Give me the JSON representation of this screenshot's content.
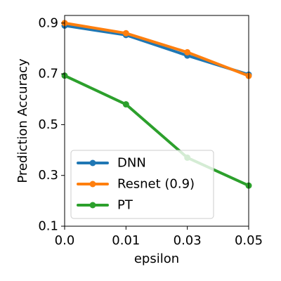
{
  "chart_data": {
    "type": "line",
    "xlabel": "epsilon",
    "ylabel": "Prediction Accuracy",
    "xticks": [
      "0.0",
      "0.01",
      "0.03",
      "0.05"
    ],
    "yticks": [
      "0.1",
      "0.3",
      "0.5",
      "0.7",
      "0.9"
    ],
    "ylim": [
      0.1,
      0.93
    ],
    "grid": false,
    "legend_position": "lower-left",
    "series": [
      {
        "name": "DNN",
        "color": "#1f77b4",
        "values": [
          0.89,
          0.853,
          0.772,
          0.697
        ]
      },
      {
        "name": "Resnet (0.9)",
        "color": "#ff7f0e",
        "values": [
          0.9,
          0.86,
          0.785,
          0.692
        ]
      },
      {
        "name": "PT",
        "color": "#2ca02c",
        "values": [
          0.693,
          0.58,
          0.37,
          0.26
        ]
      }
    ]
  }
}
